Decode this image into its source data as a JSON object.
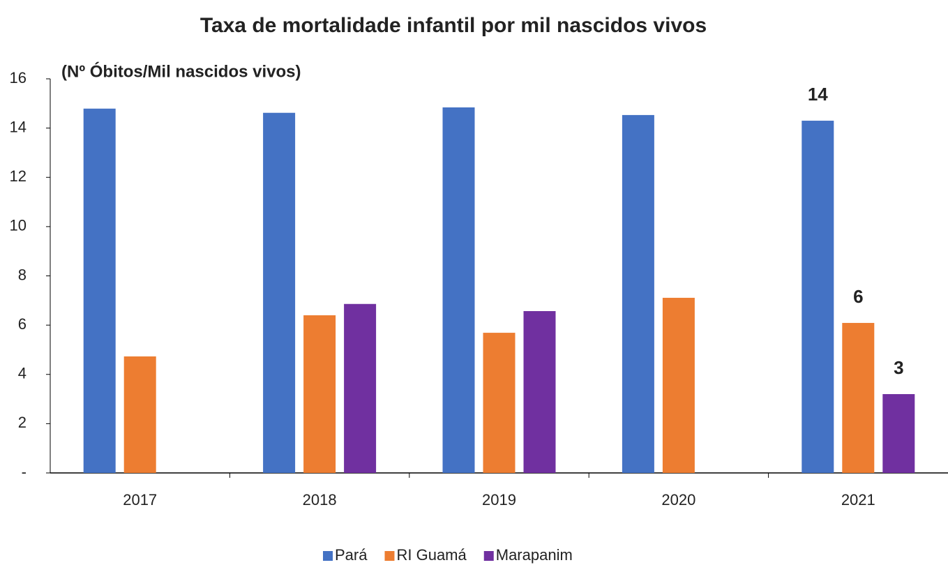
{
  "chart_data": {
    "type": "bar",
    "title": "Taxa de mortalidade infantil por mil nascidos vivos",
    "y_label": "(Nº Óbitos/Mil nascidos vivos)",
    "categories": [
      "2017",
      "2018",
      "2019",
      "2020",
      "2021"
    ],
    "series": [
      {
        "name": "Pará",
        "color": "#4472c4",
        "values": [
          14.79,
          14.62,
          14.84,
          14.53,
          14.3
        ],
        "value_labels": [
          null,
          null,
          null,
          null,
          "14"
        ]
      },
      {
        "name": "RI Guamá",
        "color": "#ed7d31",
        "values": [
          4.73,
          6.4,
          5.69,
          7.11,
          6.09
        ],
        "value_labels": [
          null,
          null,
          null,
          null,
          "6"
        ]
      },
      {
        "name": "Marapanim",
        "color": "#7030a0",
        "values": [
          null,
          6.86,
          6.57,
          null,
          3.2
        ],
        "value_labels": [
          null,
          null,
          null,
          null,
          "3"
        ]
      }
    ],
    "ylim": [
      0,
      16
    ],
    "yticks": [
      {
        "value": 0,
        "label": "-"
      },
      2,
      4,
      6,
      8,
      10,
      12,
      14,
      16
    ],
    "grid": false,
    "legend": "bottom"
  }
}
